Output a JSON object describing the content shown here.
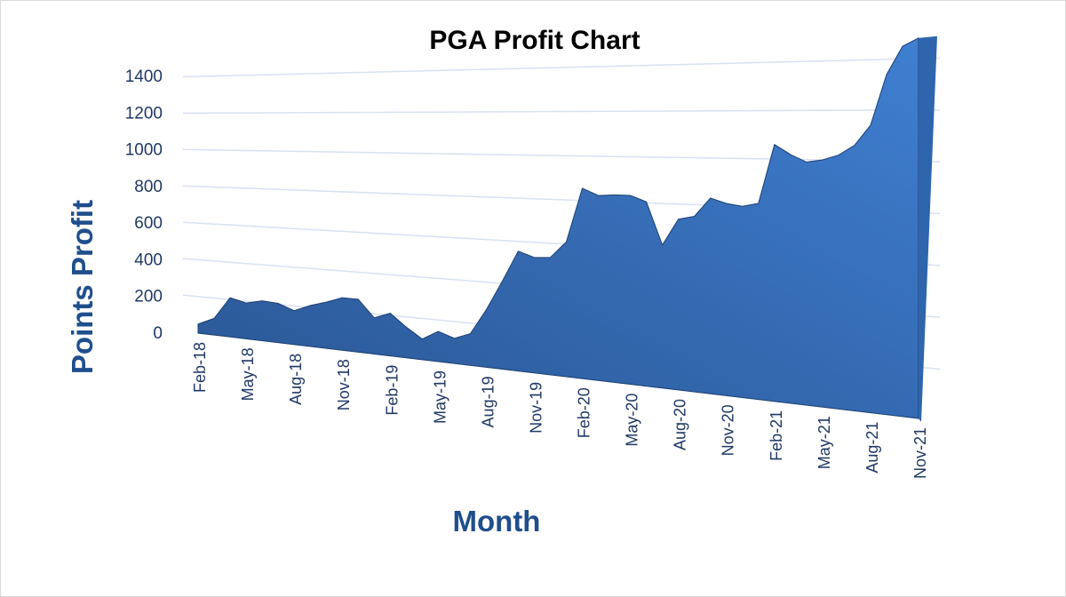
{
  "chart_data": {
    "type": "area",
    "title": "PGA Profit Chart",
    "xlabel": "Month",
    "ylabel": "Points Profit",
    "x": [
      "Feb-18",
      "Mar-18",
      "Apr-18",
      "May-18",
      "Jun-18",
      "Jul-18",
      "Aug-18",
      "Sep-18",
      "Oct-18",
      "Nov-18",
      "Dec-18",
      "Jan-19",
      "Feb-19",
      "Mar-19",
      "Apr-19",
      "May-19",
      "Jun-19",
      "Jul-19",
      "Aug-19",
      "Sep-19",
      "Oct-19",
      "Nov-19",
      "Dec-19",
      "Jan-20",
      "Feb-20",
      "Mar-20",
      "Apr-20",
      "May-20",
      "Jun-20",
      "Jul-20",
      "Aug-20",
      "Sep-20",
      "Oct-20",
      "Nov-20",
      "Dec-20",
      "Jan-21",
      "Feb-21",
      "Mar-21",
      "Apr-21",
      "May-21",
      "Jun-21",
      "Jul-21",
      "Aug-21",
      "Sep-21",
      "Oct-21",
      "Nov-21"
    ],
    "x_tick_labels": [
      "Feb-18",
      "May-18",
      "Aug-18",
      "Nov-18",
      "Feb-19",
      "May-19",
      "Aug-19",
      "Nov-19",
      "Feb-20",
      "May-20",
      "Aug-20",
      "Nov-20",
      "Feb-21",
      "May-21",
      "Aug-21",
      "Nov-21"
    ],
    "values": [
      50,
      90,
      210,
      190,
      210,
      205,
      175,
      210,
      235,
      265,
      265,
      180,
      210,
      150,
      100,
      145,
      120,
      150,
      270,
      410,
      555,
      530,
      535,
      610,
      855,
      825,
      830,
      830,
      805,
      620,
      735,
      750,
      830,
      810,
      800,
      815,
      1060,
      1020,
      990,
      1000,
      1020,
      1060,
      1140,
      1340,
      1450,
      1480
    ],
    "ylim": [
      0,
      1400
    ],
    "yticks": [
      0,
      200,
      400,
      600,
      800,
      1000,
      1200,
      1400
    ],
    "grid": true,
    "legend": "none",
    "colors": {
      "fill_light": "#3f7fd1",
      "fill_dark": "#2a5693",
      "edge": "#1c3f72",
      "grid": "#d9e1f2",
      "axis_text": "#1f3864",
      "axis_title": "#1f4e8c"
    }
  }
}
